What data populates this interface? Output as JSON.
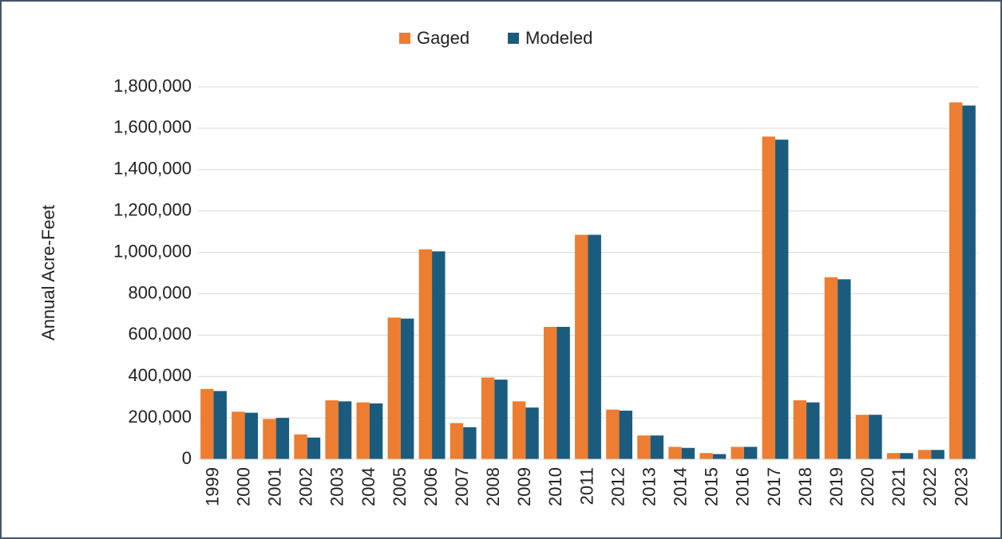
{
  "chart_data": {
    "type": "bar",
    "y_label": "Annual Acre-Feet",
    "categories": [
      "1999",
      "2000",
      "2001",
      "2002",
      "2003",
      "2004",
      "2005",
      "2006",
      "2007",
      "2008",
      "2009",
      "2010",
      "2011",
      "2012",
      "2013",
      "2014",
      "2015",
      "2016",
      "2017",
      "2018",
      "2019",
      "2020",
      "2021",
      "2022",
      "2023"
    ],
    "series": [
      {
        "name": "Gaged",
        "color": "#ed7d31",
        "values": [
          340000,
          230000,
          195000,
          120000,
          285000,
          275000,
          685000,
          1015000,
          175000,
          395000,
          280000,
          640000,
          1085000,
          240000,
          115000,
          60000,
          30000,
          60000,
          1560000,
          285000,
          880000,
          215000,
          30000,
          45000,
          1725000
        ]
      },
      {
        "name": "Modeled",
        "color": "#1b5c7e",
        "values": [
          330000,
          225000,
          200000,
          105000,
          280000,
          270000,
          680000,
          1005000,
          155000,
          385000,
          250000,
          640000,
          1085000,
          235000,
          115000,
          55000,
          25000,
          60000,
          1545000,
          275000,
          870000,
          215000,
          30000,
          45000,
          1710000
        ]
      }
    ],
    "ylim": [
      0,
      1800000
    ],
    "yticks": [
      0,
      {
        "value": 200000,
        "label": "200,000"
      },
      {
        "value": 400000,
        "label": "400,000"
      },
      {
        "value": 600000,
        "label": "600,000"
      },
      {
        "value": 800000,
        "label": "800,000"
      },
      {
        "value": 1000000,
        "label": "1,000,000"
      },
      {
        "value": 1200000,
        "label": "1,200,000"
      },
      {
        "value": 1400000,
        "label": "1,400,000"
      },
      {
        "value": 1600000,
        "label": "1,600,000"
      },
      {
        "value": 1800000,
        "label": "1,800,000"
      }
    ],
    "grid": true,
    "legend": "top"
  }
}
